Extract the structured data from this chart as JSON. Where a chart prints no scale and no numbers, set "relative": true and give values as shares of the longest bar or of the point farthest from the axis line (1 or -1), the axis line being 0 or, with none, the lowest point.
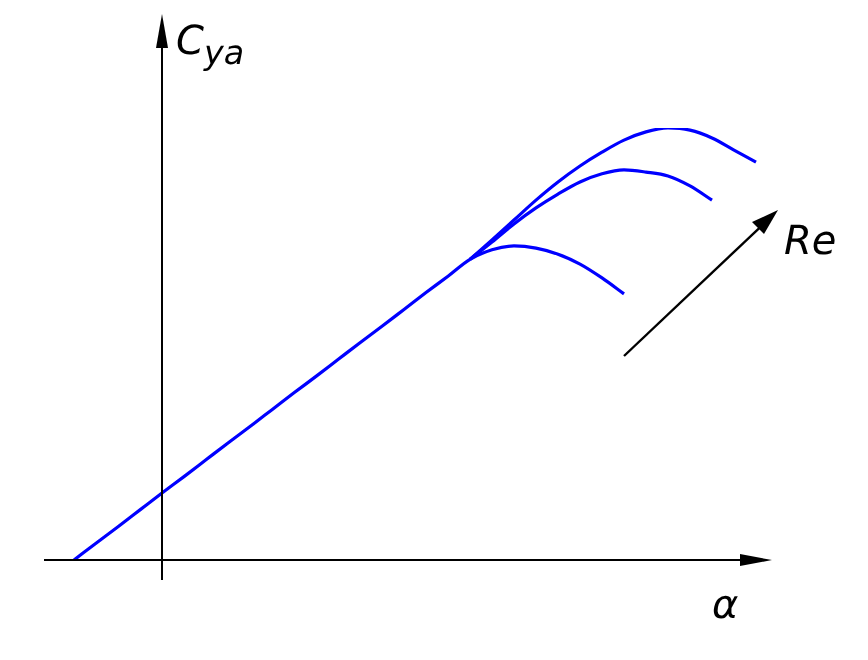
{
  "chart_data": {
    "type": "line",
    "relative": true,
    "xlabel": "α",
    "ylabel": "C$_{ya}$",
    "annotations": [
      "Re"
    ],
    "categories": [
      null,
      null,
      null,
      null,
      null,
      null,
      null,
      null,
      null,
      null,
      null,
      null,
      null,
      null,
      null,
      null,
      null,
      null,
      null,
      null,
      null,
      null,
      null,
      null,
      null,
      null,
      null,
      null,
      null,
      null,
      null,
      null,
      null
    ],
    "series": [
      {
        "color": "#0000ff",
        "values": [
          0,
          0.039,
          0.077,
          0.116,
          0.155,
          0.193,
          0.232,
          0.271,
          0.309,
          0.348,
          0.387,
          0.425,
          0.464,
          0.503,
          0.541,
          0.58,
          0.619,
          0.657,
          0.696,
          0.718,
          0.727,
          0.722,
          0.708,
          0.685,
          0.653,
          0.616,
          null,
          null,
          null,
          null,
          null,
          null,
          null
        ]
      },
      {
        "color": "#0000ff",
        "values": [
          null,
          null,
          null,
          null,
          null,
          null,
          null,
          null,
          null,
          null,
          null,
          null,
          null,
          null,
          null,
          null,
          null,
          null,
          0.696,
          0.736,
          0.778,
          0.815,
          0.847,
          0.875,
          0.894,
          0.903,
          0.898,
          0.889,
          0.866,
          0.833,
          null,
          null,
          null
        ]
      },
      {
        "color": "#0000ff",
        "values": [
          null,
          null,
          null,
          null,
          null,
          null,
          null,
          null,
          null,
          null,
          null,
          null,
          null,
          null,
          null,
          null,
          null,
          null,
          0.696,
          0.741,
          0.787,
          0.833,
          0.875,
          0.912,
          0.944,
          0.972,
          0.991,
          1,
          0.995,
          0.977,
          0.949,
          0.921,
          null
        ]
      }
    ]
  }
}
